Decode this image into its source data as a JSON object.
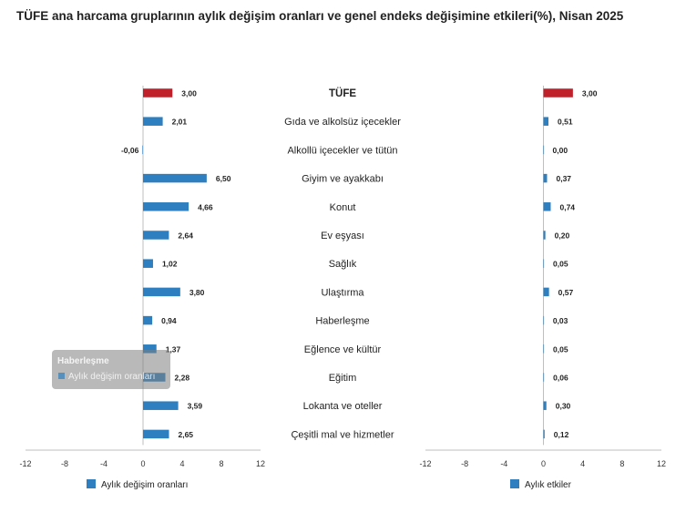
{
  "title": "TÜFE ana harcama gruplarının aylık değişim oranları ve genel endeks değişimine etkileri(%), Nisan 2025",
  "categories": [
    "TÜFE",
    "Gıda ve alkolsüz içecekler",
    "Alkollü içecekler ve tütün",
    "Giyim ve ayakkabı",
    "Konut",
    "Ev eşyası",
    "Sağlık",
    "Ulaştırma",
    "Haberleşme",
    "Eğlence ve kültür",
    "Eğitim",
    "Lokanta ve oteller",
    "Çeşitli mal ve hizmetler"
  ],
  "chart_data": [
    {
      "type": "bar",
      "orientation": "horizontal",
      "categories": [
        "TÜFE",
        "Gıda ve alkolsüz içecekler",
        "Alkollü içecekler ve tütün",
        "Giyim ve ayakkabı",
        "Konut",
        "Ev eşyası",
        "Sağlık",
        "Ulaştırma",
        "Haberleşme",
        "Eğlence ve kültür",
        "Eğitim",
        "Lokanta ve oteller",
        "Çeşitli mal ve hizmetler"
      ],
      "series": [
        {
          "name": "Aylık değişim oranları",
          "values": [
            3.0,
            2.01,
            -0.06,
            6.5,
            4.66,
            2.64,
            1.02,
            3.8,
            0.94,
            1.37,
            2.28,
            3.59,
            2.65
          ]
        }
      ],
      "value_labels": [
        "3,00",
        "2,01",
        "-0,06",
        "6,50",
        "4,66",
        "2,64",
        "1,02",
        "3,80",
        "0,94",
        "1,37",
        "2,28",
        "3,59",
        "2,65"
      ],
      "xlim": [
        -12,
        12
      ],
      "xticks": [
        -12,
        -8,
        -4,
        0,
        4,
        8,
        12
      ],
      "xtick_labels": [
        "-12",
        "-8",
        "-4",
        "0",
        "4",
        "8",
        "12"
      ],
      "highlight_index": 0,
      "legend_position": "bottom-left",
      "grid": false
    },
    {
      "type": "bar",
      "orientation": "horizontal",
      "categories": [
        "TÜFE",
        "Gıda ve alkolsüz içecekler",
        "Alkollü içecekler ve tütün",
        "Giyim ve ayakkabı",
        "Konut",
        "Ev eşyası",
        "Sağlık",
        "Ulaştırma",
        "Haberleşme",
        "Eğlence ve kültür",
        "Eğitim",
        "Lokanta ve oteller",
        "Çeşitli mal ve hizmetler"
      ],
      "series": [
        {
          "name": "Aylık etkiler",
          "values": [
            3.0,
            0.51,
            0.0,
            0.37,
            0.74,
            0.2,
            0.05,
            0.57,
            0.03,
            0.05,
            0.06,
            0.3,
            0.12
          ]
        }
      ],
      "value_labels": [
        "3,00",
        "0,51",
        "0,00",
        "0,37",
        "0,74",
        "0,20",
        "0,05",
        "0,57",
        "0,03",
        "0,05",
        "0,06",
        "0,30",
        "0,12"
      ],
      "xlim": [
        -12,
        12
      ],
      "xticks": [
        -12,
        -8,
        -4,
        0,
        4,
        8,
        12
      ],
      "xtick_labels": [
        "-12",
        "-8",
        "-4",
        "0",
        "4",
        "8",
        "12"
      ],
      "highlight_index": 0,
      "legend_position": "bottom-left",
      "grid": false
    }
  ],
  "tooltip": {
    "title": "Haberleşme",
    "series_label": "Aylık değişim oranları"
  },
  "colors": {
    "bar": "#2e7fbf",
    "highlight": "#c0202a",
    "axis": "#bfbfbf",
    "tooltip_bg": "#7f7f7f"
  }
}
